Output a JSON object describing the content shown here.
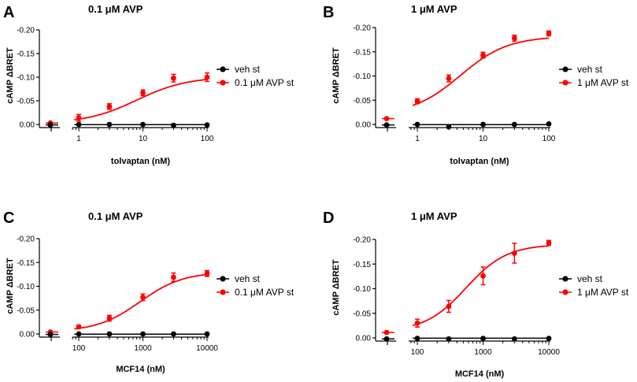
{
  "chart_data": [
    {
      "type": "line",
      "panel": "A",
      "title": "0.1 μM AVP",
      "xlabel": "tolvaptan (nM)",
      "ylabel": "cAMP ΔBRET",
      "xscale": "log",
      "xlim": [
        0.3,
        100
      ],
      "ylim": [
        0.005,
        -0.2
      ],
      "yticks": [
        "-0.20",
        "-0.15",
        "-0.10",
        "-0.05",
        "0.00"
      ],
      "xticks": [
        "1",
        "10",
        "100"
      ],
      "legend": [
        "veh st",
        "0.1 μM AVP st"
      ],
      "fit": {
        "bottom": -0.002,
        "top": -0.101,
        "ec50": 8.0,
        "hill": 1.1
      },
      "series": [
        {
          "name": "veh st",
          "color": "#000000",
          "baseline": 0.001,
          "x": [
            1,
            3,
            10,
            30,
            100
          ],
          "y": [
            0.0,
            0.0,
            0.0,
            0.002,
            0.001
          ],
          "err": [
            0.001,
            0.001,
            0.001,
            0.001,
            0.001
          ]
        },
        {
          "name": "0.1 μM AVP st",
          "color": "#ff0000",
          "baseline": -0.003,
          "x": [
            1,
            3,
            10,
            30,
            100
          ],
          "y": [
            -0.014,
            -0.038,
            -0.067,
            -0.098,
            -0.1
          ],
          "err": [
            0.007,
            0.006,
            0.006,
            0.008,
            0.009
          ]
        }
      ]
    },
    {
      "type": "line",
      "panel": "B",
      "title": "1 μM AVP",
      "xlabel": "tolvaptan (nM)",
      "ylabel": "cAMP ΔBRET",
      "xscale": "log",
      "xlim": [
        0.3,
        100
      ],
      "ylim": [
        0.005,
        -0.2
      ],
      "yticks": [
        "-0.20",
        "-0.15",
        "-0.10",
        "-0.05",
        "0.00"
      ],
      "xticks": [
        "1",
        "10",
        "100"
      ],
      "legend": [
        "veh st",
        "1 μM AVP st"
      ],
      "fit": {
        "bottom": -0.02,
        "top": -0.182,
        "ec50": 4.5,
        "hill": 1.2
      },
      "series": [
        {
          "name": "veh st",
          "color": "#000000",
          "baseline": 0.001,
          "x": [
            1,
            3,
            10,
            30,
            100
          ],
          "y": [
            0.0,
            0.005,
            0.0,
            0.0,
            -0.001
          ],
          "err": [
            0.001,
            0.001,
            0.001,
            0.001,
            0.001
          ]
        },
        {
          "name": "1 μM AVP st",
          "color": "#ff0000",
          "baseline": -0.012,
          "x": [
            1,
            3,
            10,
            30,
            100
          ],
          "y": [
            -0.048,
            -0.095,
            -0.143,
            -0.178,
            -0.188
          ],
          "err": [
            0.005,
            0.007,
            0.006,
            0.006,
            0.005
          ]
        }
      ]
    },
    {
      "type": "line",
      "panel": "C",
      "title": "0.1 μM AVP",
      "xlabel": "MCF14 (nM)",
      "ylabel": "cAMP ΔBRET",
      "xscale": "log",
      "xlim": [
        30,
        10000
      ],
      "ylim": [
        0.005,
        -0.2
      ],
      "yticks": [
        "-0.20",
        "-0.15",
        "-0.10",
        "-0.05",
        "0.00"
      ],
      "xticks": [
        "100",
        "1000",
        "10000"
      ],
      "legend": [
        "veh st",
        "0.1 μM AVP st"
      ],
      "fit": {
        "bottom": -0.005,
        "top": -0.13,
        "ec50": 900,
        "hill": 1.3
      },
      "series": [
        {
          "name": "veh st",
          "color": "#000000",
          "baseline": 0.001,
          "x": [
            100,
            300,
            1000,
            3000,
            10000
          ],
          "y": [
            0.0,
            0.0,
            0.0,
            0.0,
            0.0
          ],
          "err": [
            0.001,
            0.001,
            0.001,
            0.001,
            0.001
          ]
        },
        {
          "name": "0.1 μM AVP st",
          "color": "#ff0000",
          "baseline": -0.004,
          "x": [
            100,
            300,
            1000,
            3000,
            10000
          ],
          "y": [
            -0.015,
            -0.033,
            -0.077,
            -0.119,
            -0.127
          ],
          "err": [
            0.003,
            0.006,
            0.007,
            0.009,
            0.006
          ]
        }
      ]
    },
    {
      "type": "line",
      "panel": "D",
      "title": "1 μM AVP",
      "xlabel": "MCF14 (nM)",
      "ylabel": "cAMP ΔBRET",
      "xscale": "log",
      "xlim": [
        30,
        10000
      ],
      "ylim": [
        0.005,
        -0.2
      ],
      "yticks": [
        "-0.20",
        "-0.15",
        "-0.10",
        "-0.05",
        "0.00"
      ],
      "xticks": [
        "100",
        "1000",
        "10000"
      ],
      "legend": [
        "veh st",
        "1 μM AVP st"
      ],
      "fit": {
        "bottom": -0.013,
        "top": -0.19,
        "ec50": 550,
        "hill": 1.4
      },
      "series": [
        {
          "name": "veh st",
          "color": "#000000",
          "baseline": 0.002,
          "x": [
            100,
            300,
            1000,
            3000,
            10000
          ],
          "y": [
            0.001,
            0.002,
            0.001,
            0.002,
            0.001
          ],
          "err": [
            0.001,
            0.001,
            0.001,
            0.001,
            0.001
          ]
        },
        {
          "name": "1 μM AVP st",
          "color": "#ff0000",
          "baseline": -0.011,
          "x": [
            100,
            300,
            1000,
            3000,
            10000
          ],
          "y": [
            -0.03,
            -0.064,
            -0.126,
            -0.172,
            -0.193
          ],
          "err": [
            0.008,
            0.012,
            0.018,
            0.02,
            0.005
          ]
        }
      ]
    }
  ]
}
